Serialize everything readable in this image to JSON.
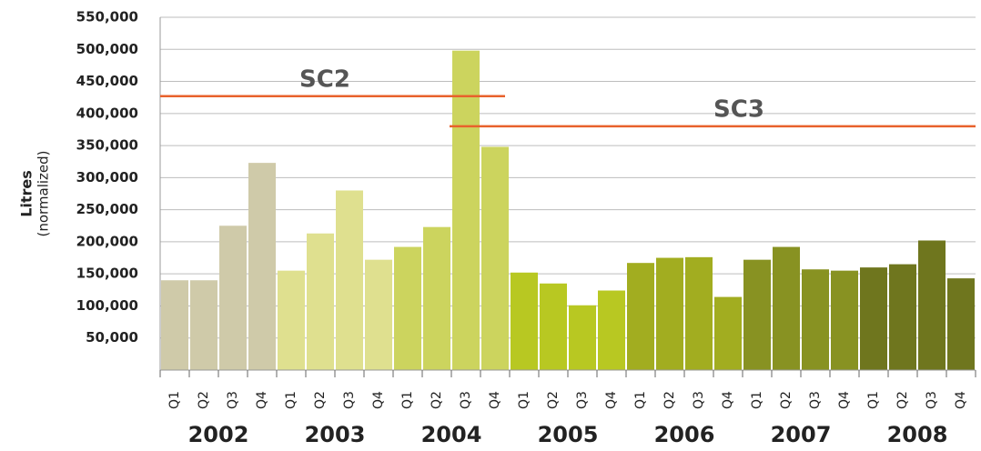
{
  "chart_data": {
    "type": "bar",
    "y_axis_title": "Litres",
    "y_axis_subtitle": "(normalized)",
    "categories": [
      "Q1",
      "Q2",
      "Q3",
      "Q4",
      "Q1",
      "Q2",
      "Q3",
      "Q4",
      "Q1",
      "Q2",
      "Q3",
      "Q4",
      "Q1",
      "Q2",
      "Q3",
      "Q4",
      "Q1",
      "Q2",
      "Q3",
      "Q4",
      "Q1",
      "Q2",
      "Q3",
      "Q4",
      "Q1",
      "Q2",
      "Q3",
      "Q4"
    ],
    "groups": [
      "2002",
      "2003",
      "2004",
      "2005",
      "2006",
      "2007",
      "2008"
    ],
    "group_colors": [
      "#cfcaa9",
      "#dfe08f",
      "#ccd45e",
      "#b8c822",
      "#a2ad20",
      "#889222",
      "#6f761e"
    ],
    "values": [
      140000,
      140000,
      225000,
      323000,
      155000,
      213000,
      280000,
      172000,
      192000,
      223000,
      498000,
      348000,
      152000,
      135000,
      101000,
      124000,
      167000,
      175000,
      176000,
      114000,
      172000,
      192000,
      157000,
      155000,
      160000,
      165000,
      202000,
      143000
    ],
    "ylim": [
      0,
      550000
    ],
    "yticks": [
      {
        "value": 50000,
        "label": "50,000"
      },
      {
        "value": 100000,
        "label": "100,000"
      },
      {
        "value": 150000,
        "label": "150,000"
      },
      {
        "value": 200000,
        "label": "200,000"
      },
      {
        "value": 250000,
        "label": "250,000"
      },
      {
        "value": 300000,
        "label": "300,000"
      },
      {
        "value": 350000,
        "label": "350,000"
      },
      {
        "value": 400000,
        "label": "400,000"
      },
      {
        "value": 450000,
        "label": "450,000"
      },
      {
        "value": 500000,
        "label": "500,000"
      },
      {
        "value": 550000,
        "label": "550,000"
      }
    ],
    "grid": true,
    "reference_lines": [
      {
        "label": "SC2",
        "value": 427000,
        "color": "#e8622c"
      },
      {
        "label": "SC3",
        "value": 380000,
        "color": "#e8622c"
      }
    ]
  }
}
